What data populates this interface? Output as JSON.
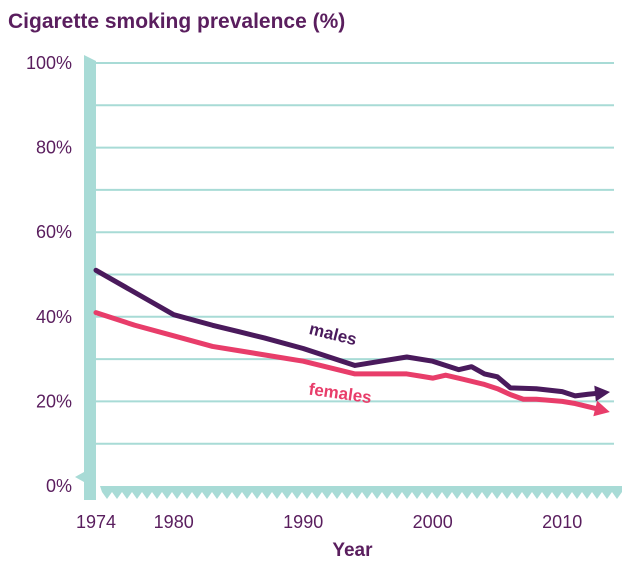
{
  "chart_data": {
    "type": "line",
    "title": "Cigarette smoking prevalence (%)",
    "xlabel": "Year",
    "ylabel": "",
    "xlim": [
      1974,
      2014
    ],
    "ylim": [
      0,
      100
    ],
    "x_ticks": [
      1974,
      1980,
      1990,
      2000,
      2010
    ],
    "y_ticks": [
      "0%",
      "20%",
      "40%",
      "60%",
      "80%",
      "100%"
    ],
    "grid": true,
    "series": [
      {
        "name": "males",
        "color": "#4a1a5c",
        "points": [
          [
            1974,
            51
          ],
          [
            1978,
            44
          ],
          [
            1980,
            40.5
          ],
          [
            1983,
            38
          ],
          [
            1985,
            36.5
          ],
          [
            1987,
            35
          ],
          [
            1990,
            32.5
          ],
          [
            1992,
            30.5
          ],
          [
            1994,
            28.5
          ],
          [
            1996,
            29.5
          ],
          [
            1998,
            30.5
          ],
          [
            2000,
            29.5
          ],
          [
            2002,
            27.5
          ],
          [
            2003,
            28.2
          ],
          [
            2004,
            26.5
          ],
          [
            2005,
            25.8
          ],
          [
            2006,
            23.2
          ],
          [
            2008,
            23
          ],
          [
            2010,
            22.3
          ],
          [
            2011,
            21.3
          ],
          [
            2012,
            21.7
          ],
          [
            2013,
            22
          ]
        ]
      },
      {
        "name": "females",
        "color": "#e83d6a",
        "points": [
          [
            1974,
            41
          ],
          [
            1977,
            38
          ],
          [
            1980,
            35.5
          ],
          [
            1983,
            33
          ],
          [
            1985,
            32
          ],
          [
            1987,
            31
          ],
          [
            1990,
            29.5
          ],
          [
            1992,
            28
          ],
          [
            1994,
            26.5
          ],
          [
            1996,
            26.5
          ],
          [
            1998,
            26.5
          ],
          [
            1999,
            26
          ],
          [
            2000,
            25.5
          ],
          [
            2001,
            26.2
          ],
          [
            2002,
            25.5
          ],
          [
            2004,
            24
          ],
          [
            2005,
            23
          ],
          [
            2006,
            21.6
          ],
          [
            2007,
            20.5
          ],
          [
            2008,
            20.5
          ],
          [
            2010,
            20
          ],
          [
            2011,
            19.5
          ],
          [
            2013,
            18
          ]
        ]
      }
    ]
  }
}
